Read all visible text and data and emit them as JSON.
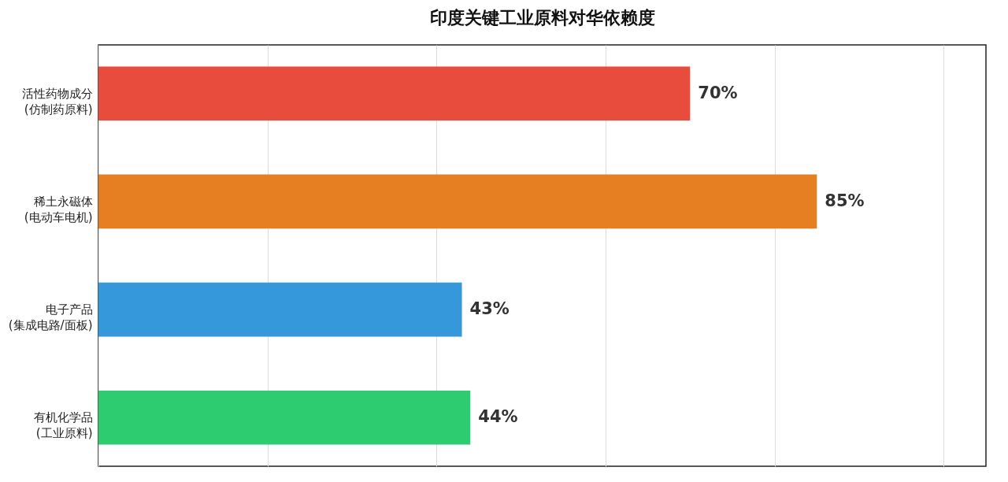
{
  "chart_data": {
    "type": "bar",
    "orientation": "horizontal",
    "title": "印度关键工业原料对华依赖度",
    "categories": [
      "活性药物成分\n(仿制药原料)",
      "稀土永磁体\n(电动车电机)",
      "电子产品\n(集成电路/面板)",
      "有机化学品\n(工业原料)"
    ],
    "values": [
      70,
      85,
      43,
      44
    ],
    "colors": [
      "#e74c3c",
      "#e67e22",
      "#3498db",
      "#2ecc71"
    ],
    "value_labels": [
      "70%",
      "85%",
      "43%",
      "44%"
    ],
    "xlim": [
      0,
      105
    ],
    "xticks": [
      {
        "value": 0,
        "label": null
      },
      {
        "value": 20,
        "label": null
      },
      {
        "value": 40,
        "label": null
      },
      {
        "value": 60,
        "label": null
      },
      {
        "value": 80,
        "label": null
      },
      {
        "value": 100,
        "label": null
      }
    ],
    "grid": "x",
    "tick_labels": "y"
  }
}
